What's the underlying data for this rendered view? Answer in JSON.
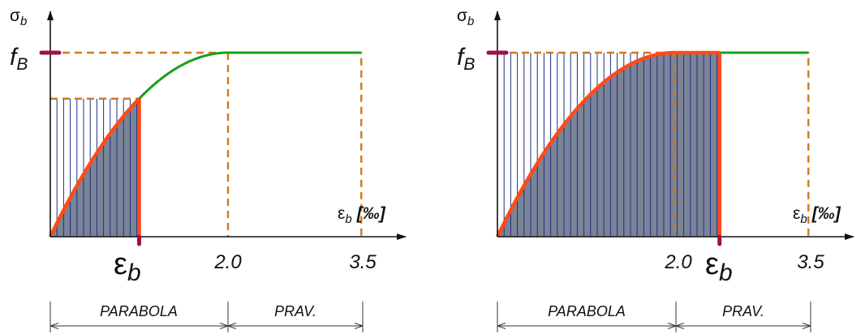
{
  "colors": {
    "axis": "#111111",
    "dash": "#d07a1e",
    "green": "#18a018",
    "red": "#ff4a17",
    "hatch": "#1c2f86",
    "fill": "#7b8496",
    "marker": "#9c1050",
    "dim": "#333333"
  },
  "panels": [
    {
      "y_axis_symbol": "σ",
      "y_axis_subscript": "b",
      "fb_main": "f",
      "fb_subscript": "B",
      "x_axis_symbol": "ε",
      "x_axis_subscript": "b",
      "x_axis_unit": "[‰]",
      "eps_marker_main": "ε",
      "eps_marker_subscript": "b",
      "tick_mid": "2.0",
      "tick_end": "3.5",
      "range_parabola": "PARABOLA",
      "range_straight": "PRAV.",
      "eps_b_value": 1.0
    },
    {
      "y_axis_symbol": "σ",
      "y_axis_subscript": "b",
      "fb_main": "f",
      "fb_subscript": "B",
      "x_axis_symbol": "ε",
      "x_axis_subscript": "b",
      "x_axis_unit": "[‰]",
      "eps_marker_main": "ε",
      "eps_marker_subscript": "b",
      "tick_mid": "2.0",
      "tick_end": "3.5",
      "range_parabola": "PARABOLA",
      "range_straight": "PRAV.",
      "eps_b_value": 2.5
    }
  ]
}
